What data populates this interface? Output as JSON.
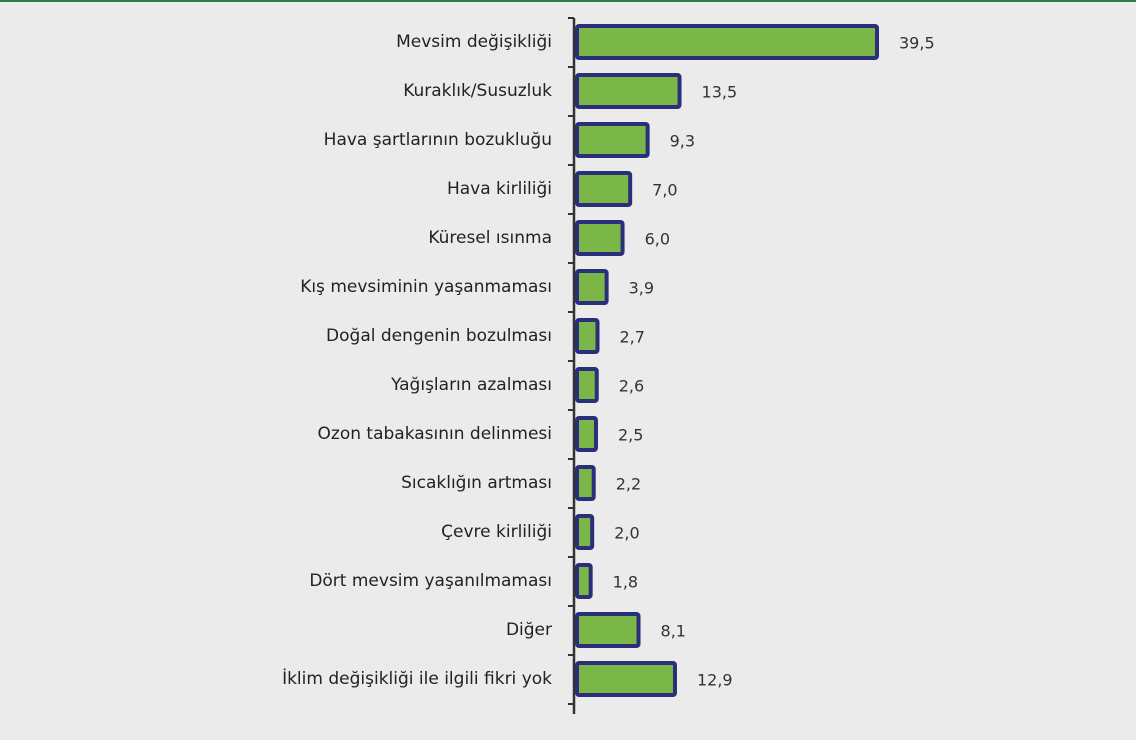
{
  "chart_data": {
    "type": "barh",
    "categories": [
      "Mevsim değişikliği",
      "Kuraklık/Susuzluk",
      "Hava şartlarının bozukluğu",
      "Hava kirliliği",
      "Küresel ısınma",
      "Kış mevsiminin yaşanmaması",
      "Doğal dengenin bozulması",
      "Yağışların azalması",
      "Ozon tabakasının delinmesi",
      "Sıcaklığın artması",
      "Çevre kirliliği",
      "Dört mevsim yaşanılmaması",
      "Diğer",
      "İklim değişikliği ile ilgili fikri yok"
    ],
    "values": [
      39.5,
      13.5,
      9.3,
      7.0,
      6.0,
      3.9,
      2.7,
      2.6,
      2.5,
      2.2,
      2.0,
      1.8,
      8.1,
      12.9
    ],
    "value_labels": [
      "39,5",
      "13,5",
      "9,3",
      "7,0",
      "6,0",
      "3,9",
      "2,7",
      "2,6",
      "2,5",
      "2,2",
      "2,0",
      "1,8",
      "8,1",
      "12,9"
    ],
    "color": "#7ab648",
    "edgecolor": "#2b2f7a"
  }
}
